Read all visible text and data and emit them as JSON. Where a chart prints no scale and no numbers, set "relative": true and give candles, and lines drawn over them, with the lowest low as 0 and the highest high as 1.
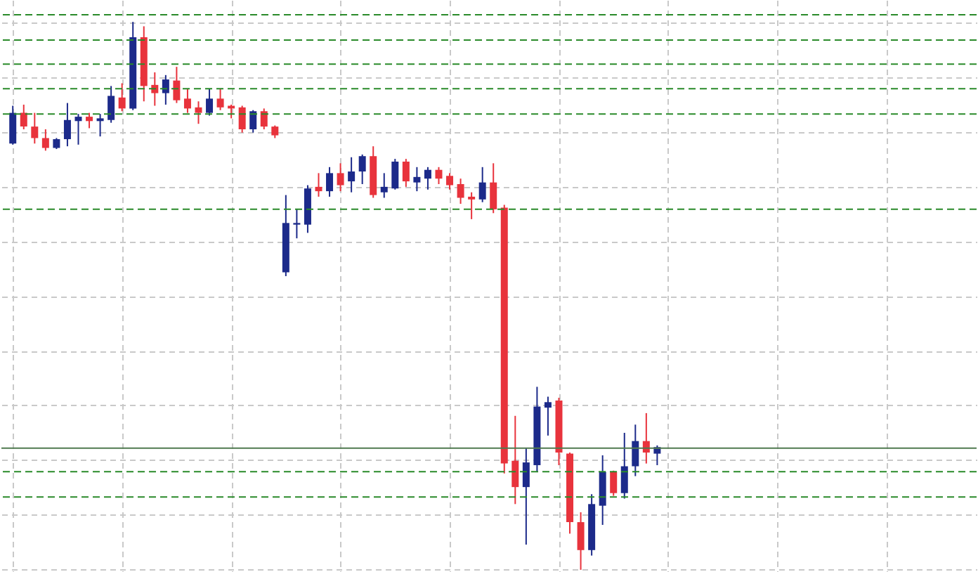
{
  "chart_data": {
    "type": "candlestick",
    "relative": true,
    "grid": true,
    "categories": [
      null,
      null,
      null,
      null,
      null,
      null,
      null,
      null,
      null,
      null,
      null,
      null,
      null,
      null,
      null,
      null,
      null,
      null,
      null,
      null,
      null,
      null,
      null,
      null,
      null,
      null,
      null,
      null,
      null,
      null,
      null,
      null,
      null,
      null,
      null,
      null,
      null,
      null,
      null,
      null,
      null,
      null,
      null,
      null,
      null,
      null,
      null,
      null,
      null,
      null,
      null,
      null,
      null,
      null,
      null,
      null,
      null,
      null,
      null,
      null
    ],
    "ohlc": [
      [
        0.778,
        0.847,
        0.776,
        0.834
      ],
      [
        0.834,
        0.849,
        0.804,
        0.809
      ],
      [
        0.809,
        0.834,
        0.778,
        0.788
      ],
      [
        0.788,
        0.804,
        0.765,
        0.77
      ],
      [
        0.77,
        0.788,
        0.768,
        0.786
      ],
      [
        0.786,
        0.852,
        0.773,
        0.821
      ],
      [
        0.819,
        0.832,
        0.776,
        0.827
      ],
      [
        0.827,
        0.834,
        0.806,
        0.819
      ],
      [
        0.819,
        0.832,
        0.791,
        0.824
      ],
      [
        0.821,
        0.883,
        0.816,
        0.865
      ],
      [
        0.862,
        0.888,
        0.837,
        0.842
      ],
      [
        0.842,
        1.0,
        0.839,
        0.972
      ],
      [
        0.972,
        0.992,
        0.855,
        0.883
      ],
      [
        0.885,
        0.908,
        0.847,
        0.87
      ],
      [
        0.87,
        0.903,
        0.849,
        0.895
      ],
      [
        0.893,
        0.918,
        0.852,
        0.857
      ],
      [
        0.86,
        0.878,
        0.834,
        0.842
      ],
      [
        0.844,
        0.855,
        0.814,
        0.834
      ],
      [
        0.834,
        0.878,
        0.829,
        0.86
      ],
      [
        0.86,
        0.878,
        0.839,
        0.844
      ],
      [
        0.847,
        0.849,
        0.824,
        0.842
      ],
      [
        0.844,
        0.847,
        0.798,
        0.804
      ],
      [
        0.804,
        0.839,
        0.798,
        0.837
      ],
      [
        0.837,
        0.842,
        0.804,
        0.809
      ],
      [
        0.809,
        0.811,
        0.788,
        0.793
      ],
      [
        0.543,
        0.684,
        0.536,
        0.633
      ],
      [
        0.63,
        0.658,
        0.605,
        0.633
      ],
      [
        0.63,
        0.702,
        0.615,
        0.696
      ],
      [
        0.699,
        0.724,
        0.681,
        0.691
      ],
      [
        0.691,
        0.735,
        0.681,
        0.724
      ],
      [
        0.724,
        0.742,
        0.691,
        0.702
      ],
      [
        0.709,
        0.753,
        0.689,
        0.727
      ],
      [
        0.727,
        0.758,
        0.704,
        0.755
      ],
      [
        0.755,
        0.773,
        0.679,
        0.684
      ],
      [
        0.689,
        0.724,
        0.679,
        0.699
      ],
      [
        0.696,
        0.75,
        0.694,
        0.745
      ],
      [
        0.745,
        0.75,
        0.699,
        0.709
      ],
      [
        0.707,
        0.735,
        0.691,
        0.717
      ],
      [
        0.714,
        0.735,
        0.694,
        0.73
      ],
      [
        0.73,
        0.735,
        0.704,
        0.714
      ],
      [
        0.719,
        0.724,
        0.694,
        0.702
      ],
      [
        0.704,
        0.714,
        0.668,
        0.679
      ],
      [
        0.681,
        0.689,
        0.64,
        0.676
      ],
      [
        0.676,
        0.735,
        0.671,
        0.707
      ],
      [
        0.707,
        0.742,
        0.651,
        0.658
      ],
      [
        0.661,
        0.666,
        0.176,
        0.194
      ],
      [
        0.199,
        0.281,
        0.12,
        0.151
      ],
      [
        0.151,
        0.222,
        0.046,
        0.196
      ],
      [
        0.191,
        0.334,
        0.179,
        0.298
      ],
      [
        0.296,
        0.316,
        0.245,
        0.306
      ],
      [
        0.309,
        0.314,
        0.191,
        0.214
      ],
      [
        0.212,
        0.214,
        0.066,
        0.087
      ],
      [
        0.087,
        0.105,
        0.0,
        0.036
      ],
      [
        0.036,
        0.138,
        0.026,
        0.12
      ],
      [
        0.117,
        0.209,
        0.082,
        0.179
      ],
      [
        0.179,
        0.181,
        0.135,
        0.14
      ],
      [
        0.14,
        0.25,
        0.13,
        0.189
      ],
      [
        0.189,
        0.265,
        0.171,
        0.235
      ],
      [
        0.235,
        0.286,
        0.194,
        0.214
      ],
      [
        0.212,
        0.227,
        0.191,
        0.224
      ]
    ],
    "colors": [
      "#1c2a8a",
      "#e8333c",
      "#e8333c",
      "#e8333c",
      "#1c2a8a",
      "#1c2a8a",
      "#1c2a8a",
      "#e8333c",
      "#1c2a8a",
      "#1c2a8a",
      "#e8333c",
      "#1c2a8a",
      "#e8333c",
      "#e8333c",
      "#1c2a8a",
      "#e8333c",
      "#e8333c",
      "#e8333c",
      "#1c2a8a",
      "#e8333c",
      "#e8333c",
      "#e8333c",
      "#1c2a8a",
      "#e8333c",
      "#e8333c",
      "#1c2a8a",
      "#1c2a8a",
      "#1c2a8a",
      "#e8333c",
      "#1c2a8a",
      "#e8333c",
      "#1c2a8a",
      "#1c2a8a",
      "#e8333c",
      "#1c2a8a",
      "#1c2a8a",
      "#e8333c",
      "#1c2a8a",
      "#1c2a8a",
      "#e8333c",
      "#e8333c",
      "#e8333c",
      "#e8333c",
      "#1c2a8a",
      "#e8333c",
      "#e8333c",
      "#e8333c",
      "#1c2a8a",
      "#1c2a8a",
      "#1c2a8a",
      "#e8333c",
      "#e8333c",
      "#e8333c",
      "#1c2a8a",
      "#1c2a8a",
      "#e8333c",
      "#1c2a8a",
      "#1c2a8a",
      "#e8333c",
      "#1c2a8a"
    ],
    "ref_lines": [
      {
        "axis": "y",
        "value": 1.013,
        "color": "#2a8a2a",
        "line_style": "dashed"
      },
      {
        "axis": "y",
        "value": 0.967,
        "color": "#2a8a2a",
        "line_style": "dashed"
      },
      {
        "axis": "y",
        "value": 0.923,
        "color": "#2a8a2a",
        "line_style": "dashed"
      },
      {
        "axis": "y",
        "value": 0.878,
        "color": "#2a8a2a",
        "line_style": "dashed"
      },
      {
        "axis": "y",
        "value": 0.832,
        "color": "#2a8a2a",
        "line_style": "dashed"
      },
      {
        "axis": "y",
        "value": 0.658,
        "color": "#2a8a2a",
        "line_style": "dashed"
      },
      {
        "axis": "y",
        "value": 0.222,
        "color": "#4f7a4f",
        "line_style": "solid"
      },
      {
        "axis": "y",
        "value": 0.179,
        "color": "#2a8a2a",
        "line_style": "dashed"
      },
      {
        "axis": "y",
        "value": 0.133,
        "color": "#2a8a2a",
        "line_style": "dashed"
      }
    ]
  }
}
